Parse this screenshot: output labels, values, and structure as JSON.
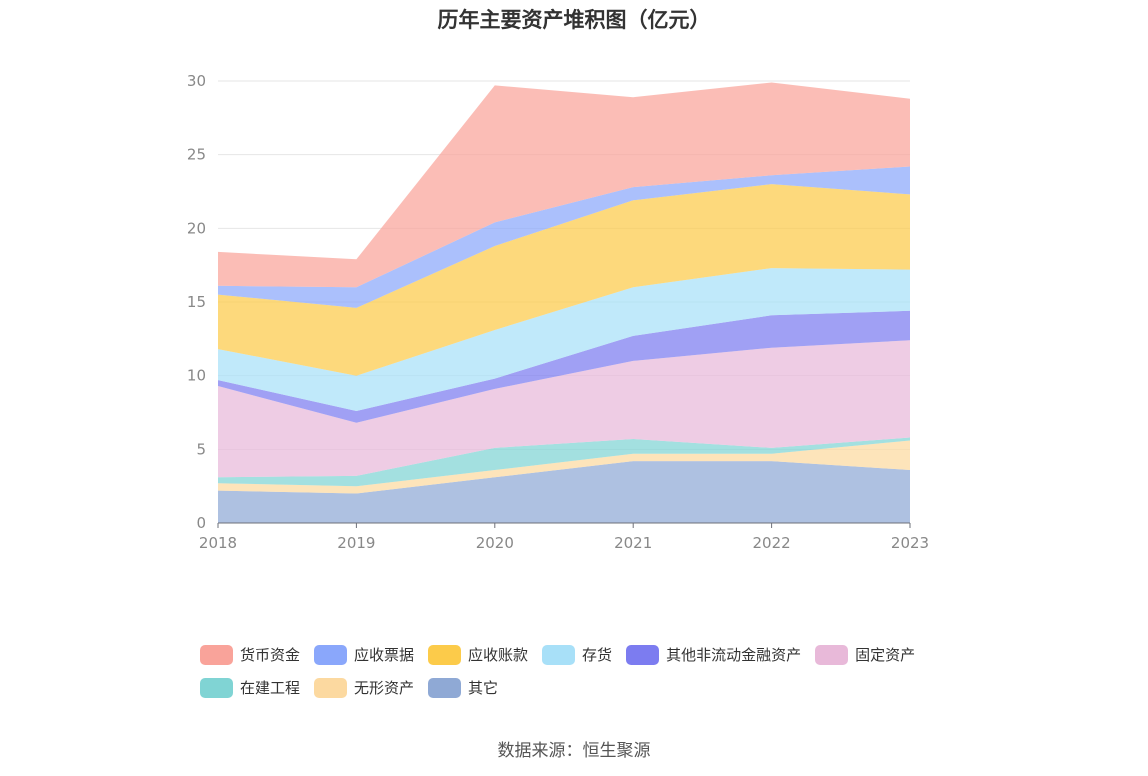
{
  "source_text": "数据来源：恒生聚源",
  "chart_data": {
    "type": "area",
    "stacked": true,
    "title": "历年主要资产堆积图（亿元）",
    "categories": [
      "2018",
      "2019",
      "2020",
      "2021",
      "2022",
      "2023"
    ],
    "ylim": [
      0,
      30
    ],
    "yticks": [
      0,
      5,
      10,
      15,
      20,
      25,
      30
    ],
    "grid": true,
    "legend_position": "bottom",
    "series": [
      {
        "name": "其它",
        "color": "#8fa9d5",
        "values": [
          2.2,
          2.0,
          3.1,
          4.2,
          4.2,
          3.6
        ]
      },
      {
        "name": "无形资产",
        "color": "#fcd9a0",
        "values": [
          0.5,
          0.5,
          0.5,
          0.5,
          0.5,
          2.0
        ]
      },
      {
        "name": "在建工程",
        "color": "#80d4d4",
        "values": [
          0.4,
          0.7,
          1.5,
          1.0,
          0.4,
          0.2
        ]
      },
      {
        "name": "固定资产",
        "color": "#e8b9d9",
        "values": [
          6.2,
          3.6,
          4.0,
          5.3,
          6.8,
          6.6
        ]
      },
      {
        "name": "其他非流动金融资产",
        "color": "#7c7cf0",
        "values": [
          0.4,
          0.8,
          0.7,
          1.7,
          2.2,
          2.0
        ]
      },
      {
        "name": "存货",
        "color": "#a8e0f8",
        "values": [
          2.1,
          2.4,
          3.3,
          3.3,
          3.2,
          2.8
        ]
      },
      {
        "name": "应收账款",
        "color": "#fccb4a",
        "values": [
          3.7,
          4.6,
          5.7,
          5.9,
          5.7,
          5.1
        ]
      },
      {
        "name": "应收票据",
        "color": "#8aa7fb",
        "values": [
          0.6,
          1.4,
          1.6,
          0.9,
          0.6,
          1.9
        ]
      },
      {
        "name": "货币资金",
        "color": "#f9a39a",
        "values": [
          2.3,
          1.9,
          9.3,
          6.1,
          6.3,
          4.6
        ]
      }
    ],
    "legend_order": [
      "货币资金",
      "应收票据",
      "应收账款",
      "存货",
      "其他非流动金融资产",
      "固定资产",
      "在建工程",
      "无形资产",
      "其它"
    ]
  }
}
